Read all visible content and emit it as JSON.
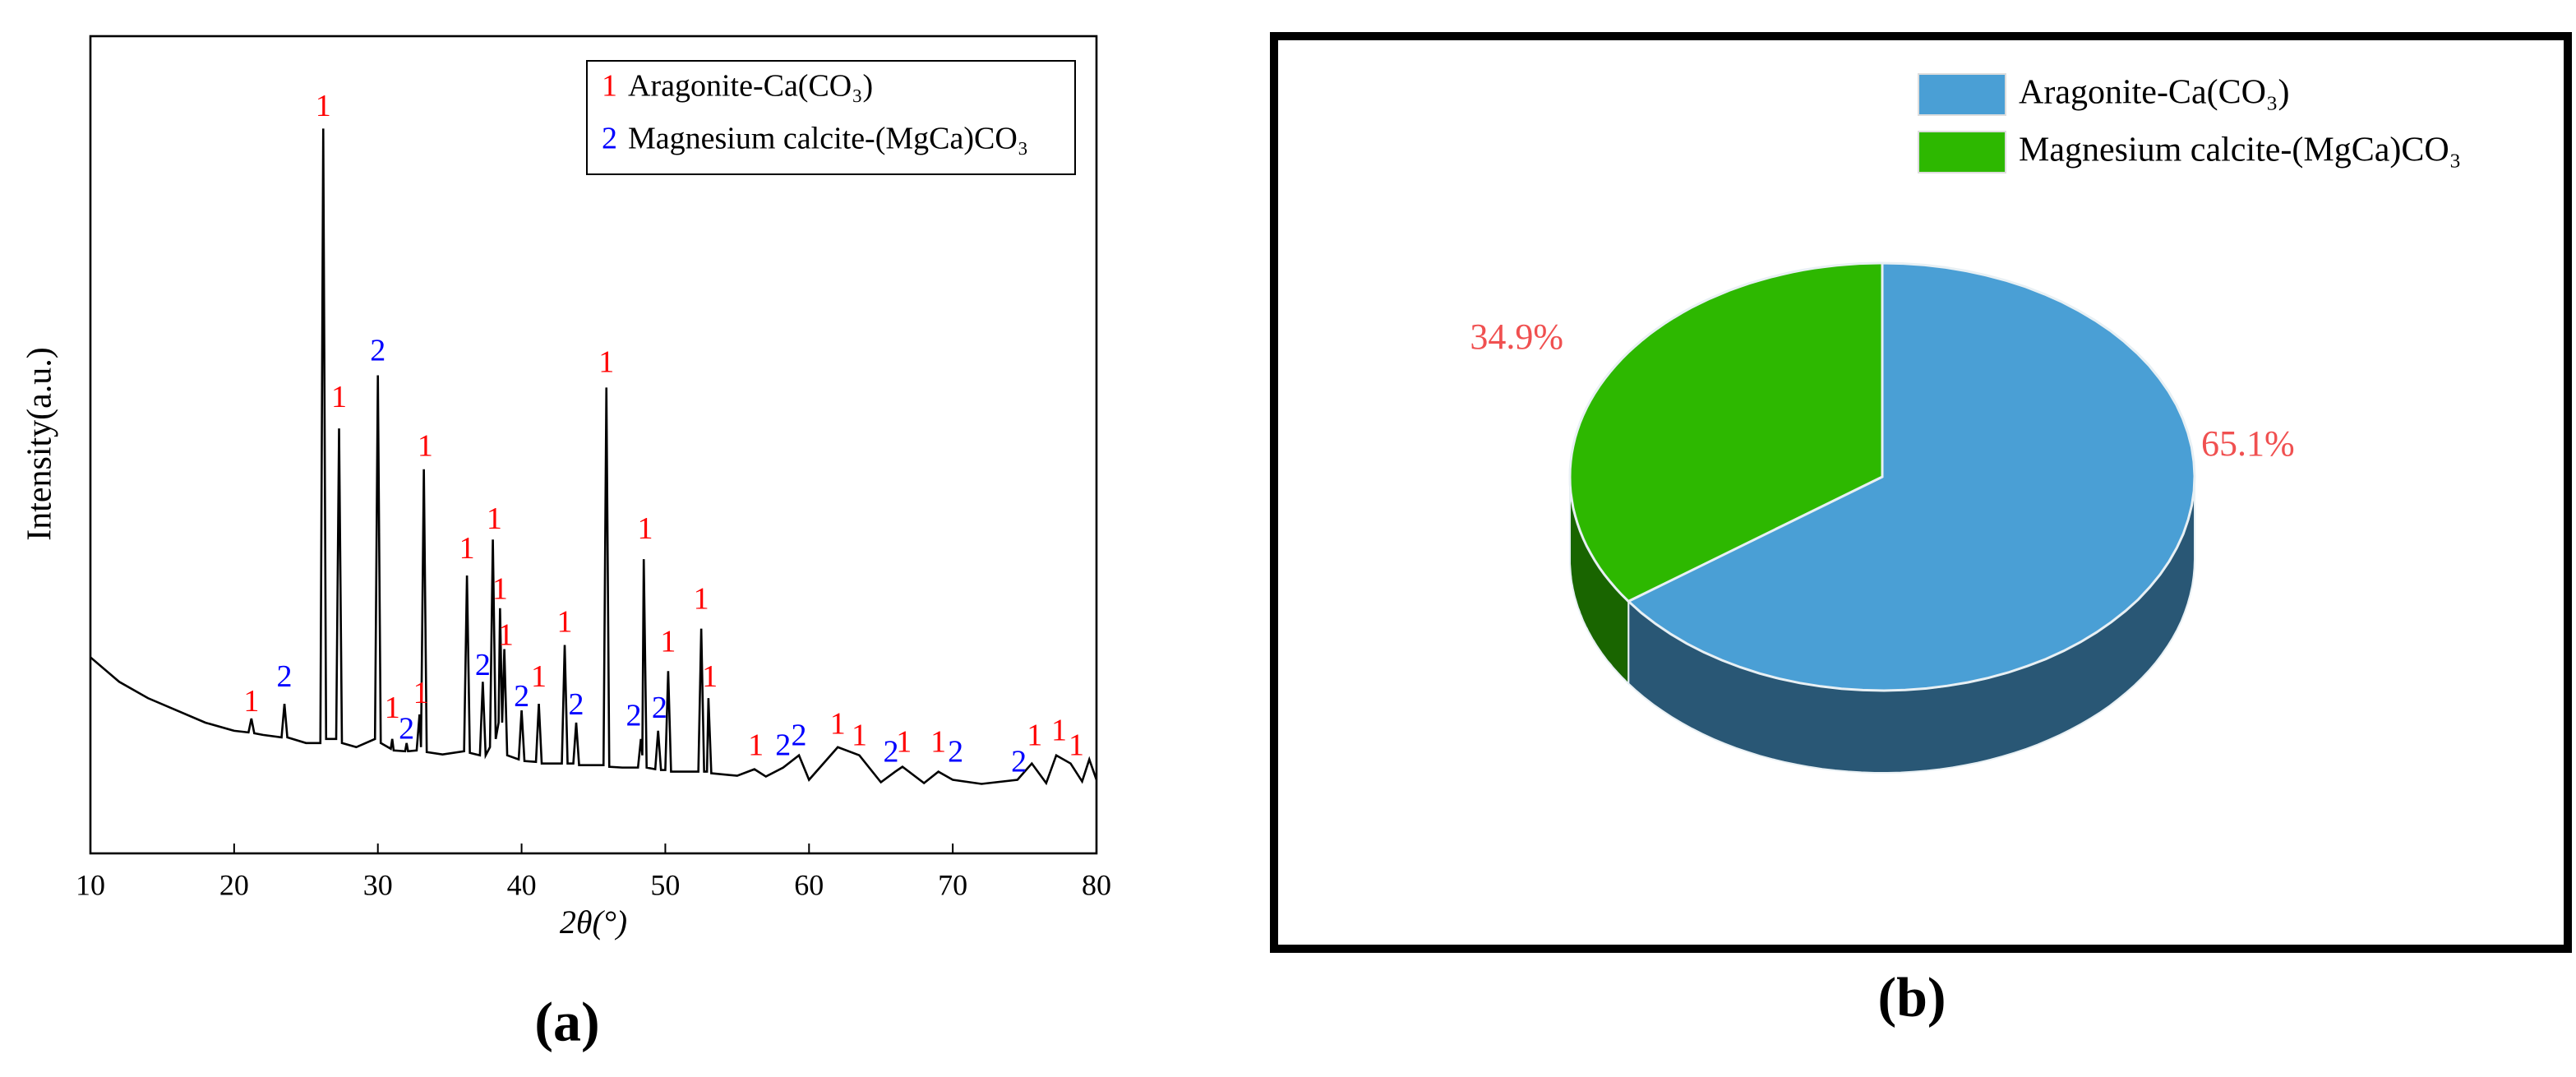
{
  "chart_data": [
    {
      "type": "line",
      "x_label": "2θ(°)",
      "y_label": "Intensity(a.u.)",
      "caption": "(a)",
      "xlim": [
        10,
        80
      ],
      "xticks": [
        10,
        20,
        30,
        40,
        50,
        60,
        70,
        80
      ],
      "ylim": [
        0,
        100
      ],
      "color": "#000000",
      "x": [
        10,
        12,
        14,
        16,
        18,
        20,
        21,
        21.2,
        21.4,
        22,
        23.3,
        23.5,
        23.7,
        25,
        26,
        26.2,
        26.4,
        27.1,
        27.3,
        27.5,
        28.5,
        29.8,
        30,
        30.2,
        30.9,
        31,
        31.1,
        31.9,
        32,
        32.1,
        32.7,
        32.9,
        33,
        33.2,
        33.4,
        34.5,
        36,
        36.2,
        36.4,
        37.1,
        37.3,
        37.5,
        37.8,
        38,
        38.2,
        38.4,
        38.5,
        38.65,
        38.8,
        39,
        39.8,
        40,
        40.2,
        41,
        41.2,
        41.4,
        42.8,
        43,
        43.2,
        43.6,
        43.8,
        44,
        45.7,
        45.9,
        46.1,
        47,
        48.1,
        48.3,
        48.4,
        48.5,
        48.7,
        49.3,
        49.5,
        49.7,
        50,
        50.2,
        50.4,
        52.3,
        52.5,
        52.7,
        52.9,
        53,
        53.2,
        55,
        56.2,
        57,
        58.2,
        59.3,
        60,
        62,
        63.5,
        65,
        66,
        66.5,
        68,
        69,
        70,
        72,
        74.5,
        75.5,
        76.5,
        77.2,
        78.2,
        79,
        79.5,
        80
      ],
      "values": [
        24,
        21,
        19,
        17.5,
        16,
        15,
        14.8,
        16.5,
        14.7,
        14.5,
        14.2,
        18.3,
        14.2,
        13.5,
        13.5,
        88.7,
        14,
        14,
        52,
        13.5,
        13,
        14,
        58.5,
        13.5,
        12.8,
        14,
        12.6,
        12.5,
        13.5,
        12.5,
        12.6,
        17,
        13,
        47,
        12.4,
        12.1,
        12.5,
        34,
        12.3,
        12,
        21,
        12,
        13,
        38.4,
        14,
        16,
        30,
        16,
        25,
        12,
        11.5,
        17.5,
        11.3,
        11.2,
        18.3,
        11,
        11,
        25.5,
        11,
        11,
        16,
        10.8,
        10.8,
        57,
        10.6,
        10.5,
        10.5,
        14,
        12,
        36,
        10.5,
        10.3,
        15,
        10.2,
        10.2,
        22.3,
        10,
        10,
        27.5,
        10,
        10,
        19,
        9.8,
        9.5,
        10.3,
        9.4,
        10.5,
        12,
        9,
        13,
        12,
        8.7,
        10,
        10.6,
        8.6,
        10,
        9,
        8.5,
        9,
        11,
        8.6,
        12,
        11,
        8.8,
        11.5,
        9
      ],
      "legend": [
        {
          "marker": "1",
          "label": "Aragonite-Ca(CO₃)",
          "color": "#ff0000"
        },
        {
          "marker": "2",
          "label": "Magnesium calcite-(MgCa)CO₃",
          "color": "#0000ff"
        }
      ],
      "annotations": [
        {
          "text": "1",
          "x": 21.2,
          "y": 18.3
        },
        {
          "text": "2",
          "x": 23.5,
          "y": 21.3
        },
        {
          "text": "1",
          "x": 26.2,
          "y": 91.1
        },
        {
          "text": "1",
          "x": 27.3,
          "y": 55.5
        },
        {
          "text": "2",
          "x": 30,
          "y": 61.2
        },
        {
          "text": "1",
          "x": 31,
          "y": 17.5
        },
        {
          "text": "2",
          "x": 32,
          "y": 14.9
        },
        {
          "text": "1",
          "x": 33,
          "y": 19.3
        },
        {
          "text": "1",
          "x": 33.3,
          "y": 49.5
        },
        {
          "text": "1",
          "x": 36.2,
          "y": 37
        },
        {
          "text": "2",
          "x": 37.3,
          "y": 22.7
        },
        {
          "text": "1",
          "x": 38.1,
          "y": 40.6
        },
        {
          "text": "1",
          "x": 38.5,
          "y": 32
        },
        {
          "text": "1",
          "x": 38.9,
          "y": 26.4
        },
        {
          "text": "2",
          "x": 40,
          "y": 18.9
        },
        {
          "text": "1",
          "x": 41.2,
          "y": 21.3
        },
        {
          "text": "1",
          "x": 43,
          "y": 28
        },
        {
          "text": "2",
          "x": 43.8,
          "y": 17.9
        },
        {
          "text": "1",
          "x": 45.9,
          "y": 59.8
        },
        {
          "text": "2",
          "x": 47.8,
          "y": 16.5
        },
        {
          "text": "1",
          "x": 48.6,
          "y": 39.4
        },
        {
          "text": "2",
          "x": 49.6,
          "y": 17.5
        },
        {
          "text": "1",
          "x": 50.2,
          "y": 25.6
        },
        {
          "text": "1",
          "x": 52.5,
          "y": 30.8
        },
        {
          "text": "1",
          "x": 53.1,
          "y": 21.3
        },
        {
          "text": "1",
          "x": 56.3,
          "y": 12.9
        },
        {
          "text": "2",
          "x": 58.2,
          "y": 12.9
        },
        {
          "text": "2",
          "x": 59.3,
          "y": 14.1
        },
        {
          "text": "1",
          "x": 62,
          "y": 15.5
        },
        {
          "text": "1",
          "x": 63.5,
          "y": 14.1
        },
        {
          "text": "2",
          "x": 65.7,
          "y": 12.1
        },
        {
          "text": "1",
          "x": 66.6,
          "y": 13.3
        },
        {
          "text": "1",
          "x": 69,
          "y": 13.3
        },
        {
          "text": "2",
          "x": 70.2,
          "y": 12.1
        },
        {
          "text": "2",
          "x": 74.6,
          "y": 10.9
        },
        {
          "text": "1",
          "x": 75.7,
          "y": 14.1
        },
        {
          "text": "1",
          "x": 77.4,
          "y": 14.7
        },
        {
          "text": "1",
          "x": 78.6,
          "y": 12.9
        }
      ]
    },
    {
      "type": "pie",
      "caption": "(b)",
      "categories": [
        "Aragonite-Ca(CO₃)",
        "Magnesium calcite-(MgCa)CO₃"
      ],
      "values": [
        65.1,
        34.9
      ],
      "value_labels": [
        "65.1%",
        "34.9%"
      ],
      "colors": [
        "#4a9fd5",
        "#2db800"
      ],
      "label_color": "#f05050"
    }
  ]
}
